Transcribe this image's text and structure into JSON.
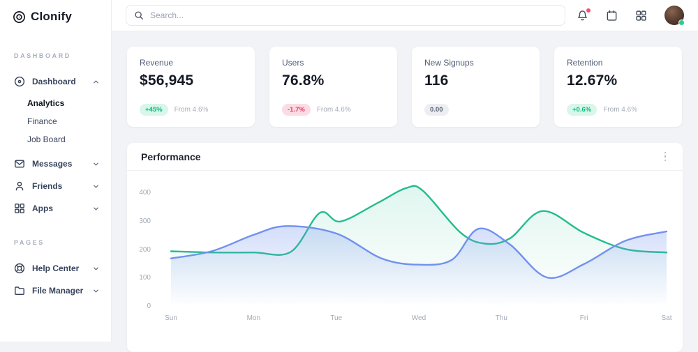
{
  "brand": {
    "name": "Clonify"
  },
  "topbar": {
    "search_placeholder": "Search...",
    "icons": [
      "bell-icon",
      "calendar-icon",
      "apps-grid-icon",
      "avatar"
    ],
    "notification_dot_color": "#f4516c",
    "online_dot_color": "#2ecc8e"
  },
  "sidebar": {
    "sections": [
      {
        "label": "DASHBOARD",
        "items": [
          {
            "label": "Dashboard",
            "icon": "dashboard-icon",
            "expanded": true,
            "children": [
              {
                "label": "Analytics",
                "active": true
              },
              {
                "label": "Finance",
                "active": false
              },
              {
                "label": "Job Board",
                "active": false
              }
            ]
          },
          {
            "label": "Messages",
            "icon": "mail-icon",
            "expanded": false
          },
          {
            "label": "Friends",
            "icon": "user-icon",
            "expanded": false
          },
          {
            "label": "Apps",
            "icon": "apps-icon",
            "expanded": false
          }
        ]
      },
      {
        "label": "PAGES",
        "items": [
          {
            "label": "Help Center",
            "icon": "lifebuoy-icon",
            "expanded": false
          },
          {
            "label": "File Manager",
            "icon": "folder-icon",
            "expanded": false
          }
        ]
      }
    ]
  },
  "cards": [
    {
      "title": "Revenue",
      "value": "$56,945",
      "badge": "+45%",
      "badge_type": "positive",
      "note": "From 4.6%"
    },
    {
      "title": "Users",
      "value": "76.8%",
      "badge": "-1.7%",
      "badge_type": "negative",
      "note": "From 4.6%"
    },
    {
      "title": "New Signups",
      "value": "116",
      "badge": "0.00",
      "badge_type": "neutral",
      "note": ""
    },
    {
      "title": "Retention",
      "value": "12.67%",
      "badge": "+0.6%",
      "badge_type": "positive",
      "note": "From 4.6%"
    }
  ],
  "panel": {
    "title": "Performance"
  },
  "colors": {
    "background": "#f2f3f7",
    "card": "#ffffff",
    "badge_positive_text": "#0cb77f",
    "badge_negative_text": "#e73960",
    "series_green": "#22bd8e",
    "series_blue": "#7191ef"
  },
  "chart_data": {
    "type": "area",
    "title": "Performance",
    "x_labels": [
      "Sun",
      "Mon",
      "Tue",
      "Wed",
      "Thu",
      "Fri",
      "Sat"
    ],
    "y_ticks": [
      0,
      100,
      200,
      300,
      400
    ],
    "ylim": [
      0,
      440
    ],
    "grid": false,
    "legend": "none",
    "series": [
      {
        "name": "series-green",
        "color": "#22bd8e",
        "fill_opacity": 0.14,
        "points": [
          [
            0,
            195
          ],
          [
            0.5,
            191
          ],
          [
            1,
            191
          ],
          [
            1.45,
            193
          ],
          [
            1.8,
            330
          ],
          [
            2.05,
            300
          ],
          [
            2.5,
            365
          ],
          [
            2.85,
            418
          ],
          [
            3.05,
            408
          ],
          [
            3.5,
            262
          ],
          [
            3.8,
            222
          ],
          [
            4.1,
            240
          ],
          [
            4.5,
            337
          ],
          [
            5,
            260
          ],
          [
            5.5,
            203
          ],
          [
            6,
            191
          ]
        ]
      },
      {
        "name": "series-blue",
        "color": "#7191ef",
        "fill_opacity": 0.3,
        "points": [
          [
            0,
            170
          ],
          [
            0.5,
            196
          ],
          [
            1,
            253
          ],
          [
            1.4,
            284
          ],
          [
            2,
            258
          ],
          [
            2.55,
            170
          ],
          [
            3,
            148
          ],
          [
            3.4,
            165
          ],
          [
            3.72,
            274
          ],
          [
            4.1,
            220
          ],
          [
            4.55,
            103
          ],
          [
            5,
            150
          ],
          [
            5.5,
            232
          ],
          [
            6,
            265
          ]
        ]
      }
    ]
  }
}
